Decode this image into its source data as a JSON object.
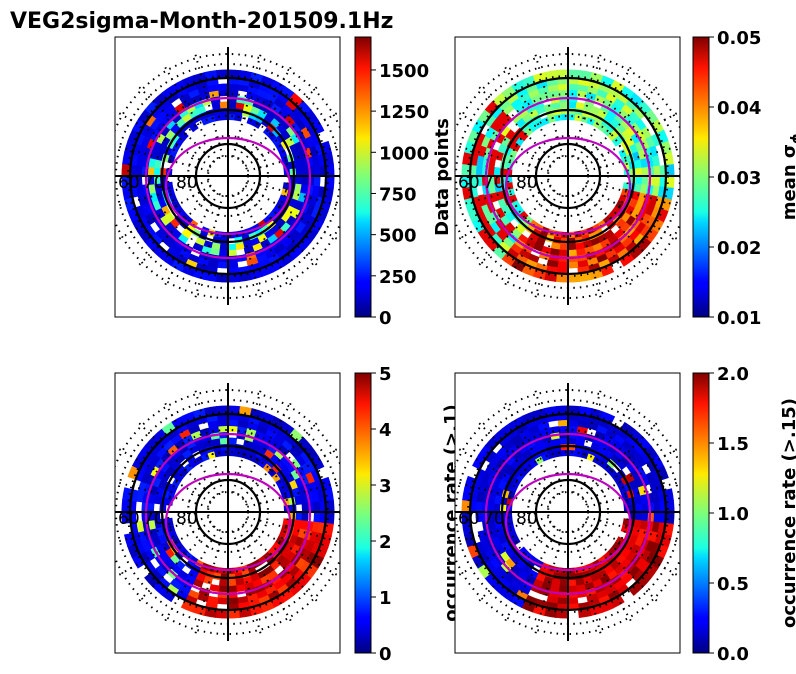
{
  "chart_data": {
    "type": "polar-grid",
    "title": "VEG2sigma-Month-201509.1Hz",
    "latitude_labels": [
      "60",
      "70",
      "80"
    ],
    "panels": [
      {
        "id": "data-points",
        "colorbar_label": "Data points",
        "colorbar_label_math": false,
        "ticks": [
          "0",
          "250",
          "500",
          "750",
          "1000",
          "1250",
          "1500"
        ],
        "range": [
          0,
          1700
        ],
        "colormap": "jet",
        "mode": "count"
      },
      {
        "id": "mean-sigma",
        "colorbar_label": "mean σ",
        "colorbar_label_sub": "ϕ",
        "ticks": [
          "0.01",
          "0.02",
          "0.03",
          "0.04",
          "0.05"
        ],
        "range": [
          0.01,
          0.05
        ],
        "colormap": "jet",
        "mode": "sigma"
      },
      {
        "id": "occurrence-01",
        "colorbar_label": "occurrence rate (>.1)",
        "ticks": [
          "0",
          "1",
          "2",
          "3",
          "4",
          "5"
        ],
        "range": [
          0,
          5
        ],
        "colormap": "jet",
        "mode": "occ1"
      },
      {
        "id": "occurrence-015",
        "colorbar_label": "occurrence rate (>.15)",
        "ticks": [
          "0.0",
          "0.5",
          "1.0",
          "1.5",
          "2.0"
        ],
        "range": [
          0,
          2
        ],
        "colormap": "jet",
        "mode": "occ2"
      }
    ]
  }
}
